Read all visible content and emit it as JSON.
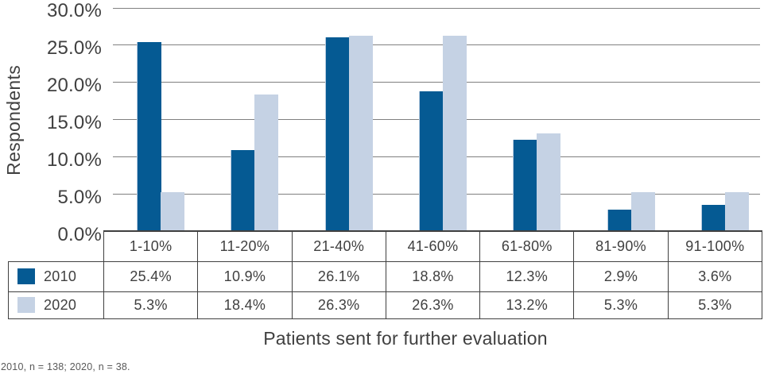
{
  "chart_data": {
    "type": "bar",
    "title": "",
    "xlabel": "Patients sent for further evaluation",
    "ylabel": "Respondents",
    "categories": [
      "1-10%",
      "11-20%",
      "21-40%",
      "41-60%",
      "61-80%",
      "81-90%",
      "91-100%"
    ],
    "series": [
      {
        "name": "2010",
        "color": "#055a93",
        "values": [
          25.4,
          10.9,
          26.1,
          18.8,
          12.3,
          2.9,
          3.6
        ],
        "display": [
          "25.4%",
          "10.9%",
          "26.1%",
          "18.8%",
          "12.3%",
          "2.9%",
          "3.6%"
        ]
      },
      {
        "name": "2020",
        "color": "#c5d2e4",
        "values": [
          5.3,
          18.4,
          26.3,
          26.3,
          13.2,
          5.3,
          5.3
        ],
        "display": [
          "5.3%",
          "18.4%",
          "26.3%",
          "26.3%",
          "13.2%",
          "5.3%",
          "5.3%"
        ]
      }
    ],
    "ylim": [
      0,
      30
    ],
    "ytick_step": 5,
    "ytick_labels": [
      "30.0%",
      "25.0%",
      "20.0%",
      "15.0%",
      "10.0%",
      "5.0%",
      "0.0%"
    ],
    "grid": true,
    "legend_position": "table rows below chart (left column with color swatches)"
  },
  "footnote": "2010, n = 138; 2020, n = 38.",
  "colors": {
    "bar_2010": "#055a93",
    "bar_2020": "#c5d2e4",
    "gridline": "#808080",
    "table_border": "#404040",
    "text": "#404040",
    "footnote_text": "#595959",
    "background": "#ffffff"
  }
}
